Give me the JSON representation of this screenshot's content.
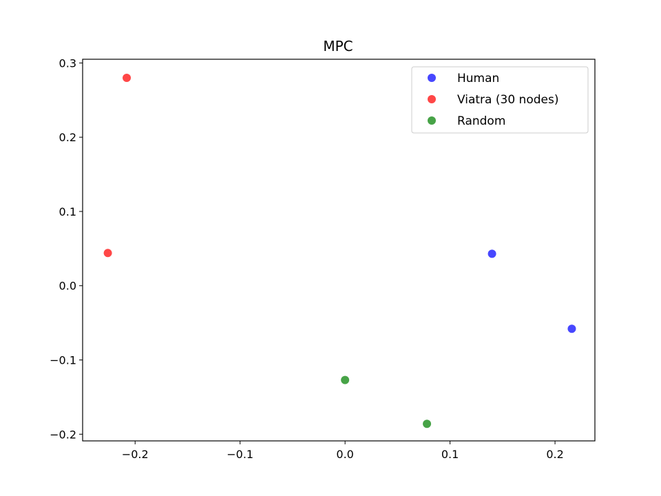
{
  "chart_data": {
    "type": "scatter",
    "title": "MPC",
    "xlabel": "",
    "ylabel": "",
    "xlim": [
      -0.25,
      0.238
    ],
    "ylim": [
      -0.209,
      0.305
    ],
    "x_ticks": [
      -0.2,
      -0.1,
      0.0,
      0.1,
      0.2
    ],
    "x_tick_labels": [
      "−0.2",
      "−0.1",
      "0.0",
      "0.1",
      "0.2"
    ],
    "y_ticks": [
      -0.2,
      -0.1,
      0.0,
      0.1,
      0.2,
      0.3
    ],
    "y_tick_labels": [
      "−0.2",
      "−0.1",
      "0.0",
      "0.1",
      "0.2",
      "0.3"
    ],
    "grid": false,
    "legend_position": "top-right",
    "series": [
      {
        "name": "Human",
        "color": "#0000ff",
        "points": [
          [
            0.14,
            0.043
          ],
          [
            0.216,
            -0.058
          ]
        ]
      },
      {
        "name": "Viatra (30 nodes)",
        "color": "#ff0000",
        "points": [
          [
            -0.208,
            0.28
          ],
          [
            -0.226,
            0.044
          ]
        ]
      },
      {
        "name": "Random",
        "color": "#008000",
        "points": [
          [
            0.0,
            -0.127
          ],
          [
            0.078,
            -0.186
          ]
        ]
      }
    ]
  }
}
